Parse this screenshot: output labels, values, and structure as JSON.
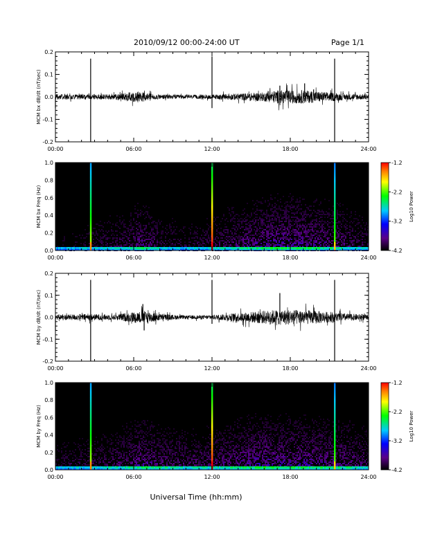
{
  "header": {
    "title": "2010/09/12  00:00-24:00 UT",
    "page": "Page 1/1"
  },
  "footer": {
    "xlabel": "Universal Time (hh:mm)"
  },
  "colors": {
    "trace": "#000000",
    "spectrogram_background": "#000000",
    "colorbar": [
      "#000000",
      "#5a0088",
      "#0000ff",
      "#00c8ff",
      "#00ff00",
      "#ffff00",
      "#ff8000",
      "#ff0000"
    ]
  },
  "chart_data": [
    {
      "type": "line",
      "ylabel": "MCM bx dB/dt (nT/sec)",
      "x_ticks": [
        "00:00",
        "06:00",
        "12:00",
        "18:00",
        "24:00"
      ],
      "xlim": [
        0,
        24
      ],
      "ylim": [
        -0.2,
        0.2
      ],
      "y_ticks": [
        "0.2",
        "0.1",
        "0.0",
        "-0.1",
        "-0.2"
      ],
      "baseline": 0.0,
      "noise_envelope": [
        [
          0,
          0.012
        ],
        [
          3,
          0.012
        ],
        [
          4.5,
          0.012
        ],
        [
          5.5,
          0.02
        ],
        [
          6.5,
          0.025
        ],
        [
          7.5,
          0.012
        ],
        [
          10,
          0.008
        ],
        [
          12,
          0.01
        ],
        [
          14,
          0.015
        ],
        [
          16,
          0.02
        ],
        [
          17,
          0.03
        ],
        [
          18,
          0.03
        ],
        [
          19,
          0.03
        ],
        [
          20,
          0.025
        ],
        [
          22,
          0.015
        ],
        [
          24,
          0.012
        ]
      ],
      "spikes": [
        {
          "x": 0.0,
          "y": -0.05
        },
        {
          "x": 2.7,
          "y": 0.17
        },
        {
          "x": 2.7,
          "y": -0.2
        },
        {
          "x": 12.0,
          "y": 0.18
        },
        {
          "x": 12.0,
          "y": -0.05
        },
        {
          "x": 17.2,
          "y": 0.05
        },
        {
          "x": 19.1,
          "y": 0.06
        },
        {
          "x": 21.4,
          "y": 0.17
        },
        {
          "x": 21.4,
          "y": -0.2
        }
      ]
    },
    {
      "type": "heatmap",
      "ylabel": "MCM bx Freq (Hz)",
      "x_ticks": [
        "00:00",
        "06:00",
        "12:00",
        "18:00",
        "24:00"
      ],
      "xlim": [
        0,
        24
      ],
      "ylim": [
        0.0,
        1.0
      ],
      "y_ticks": [
        "1.0",
        "0.8",
        "0.6",
        "0.4",
        "0.2",
        "0.0"
      ],
      "colorbar_label": "Log10 Power",
      "colorbar_ticks": [
        "-1.2",
        "-2.2",
        "-3.2",
        "-4.2"
      ],
      "color_range": [
        -4.2,
        -1.2
      ],
      "activity": [
        [
          0,
          0.1
        ],
        [
          5.5,
          0.3
        ],
        [
          6.5,
          0.5
        ],
        [
          8,
          0.25
        ],
        [
          10,
          0.2
        ],
        [
          12,
          0.25
        ],
        [
          14,
          0.4
        ],
        [
          17,
          0.6
        ],
        [
          19,
          0.55
        ],
        [
          21,
          0.45
        ],
        [
          24,
          0.25
        ]
      ],
      "vertical_lines": [
        {
          "x": 2.7,
          "intensity": 0.75
        },
        {
          "x": 12.0,
          "intensity": 1.0
        },
        {
          "x": 21.4,
          "intensity": 0.7
        }
      ]
    },
    {
      "type": "line",
      "ylabel": "MCM by dB/dt (nT/sec)",
      "x_ticks": [
        "00:00",
        "06:00",
        "12:00",
        "18:00",
        "24:00"
      ],
      "xlim": [
        0,
        24
      ],
      "ylim": [
        -0.2,
        0.2
      ],
      "y_ticks": [
        "0.2",
        "0.1",
        "0.0",
        "-0.1",
        "-0.2"
      ],
      "baseline": 0.0,
      "noise_envelope": [
        [
          0,
          0.012
        ],
        [
          2.5,
          0.015
        ],
        [
          4.5,
          0.012
        ],
        [
          6,
          0.025
        ],
        [
          7,
          0.03
        ],
        [
          8,
          0.015
        ],
        [
          10,
          0.008
        ],
        [
          12,
          0.01
        ],
        [
          14,
          0.02
        ],
        [
          16,
          0.03
        ],
        [
          17,
          0.035
        ],
        [
          18,
          0.035
        ],
        [
          20,
          0.03
        ],
        [
          22,
          0.018
        ],
        [
          24,
          0.012
        ]
      ],
      "spikes": [
        {
          "x": 0.0,
          "y": -0.06
        },
        {
          "x": 2.7,
          "y": 0.17
        },
        {
          "x": 2.7,
          "y": -0.2
        },
        {
          "x": 6.7,
          "y": 0.06
        },
        {
          "x": 6.8,
          "y": -0.06
        },
        {
          "x": 12.0,
          "y": 0.17
        },
        {
          "x": 12.0,
          "y": -0.03
        },
        {
          "x": 17.2,
          "y": 0.11
        },
        {
          "x": 21.4,
          "y": 0.17
        },
        {
          "x": 21.4,
          "y": -0.2
        }
      ]
    },
    {
      "type": "heatmap",
      "ylabel": "MCM by Freq (Hz)",
      "x_ticks": [
        "00:00",
        "06:00",
        "12:00",
        "18:00",
        "24:00"
      ],
      "xlim": [
        0,
        24
      ],
      "ylim": [
        0.0,
        1.0
      ],
      "y_ticks": [
        "1.0",
        "0.8",
        "0.6",
        "0.4",
        "0.2",
        "0.0"
      ],
      "colorbar_label": "Log10 Power",
      "colorbar_ticks": [
        "-1.2",
        "-2.2",
        "-3.2",
        "-4.2"
      ],
      "color_range": [
        -4.2,
        -1.2
      ],
      "activity": [
        [
          0,
          0.2
        ],
        [
          3,
          0.25
        ],
        [
          5,
          0.35
        ],
        [
          6.5,
          0.5
        ],
        [
          8,
          0.4
        ],
        [
          10,
          0.35
        ],
        [
          12,
          0.35
        ],
        [
          14,
          0.5
        ],
        [
          16,
          0.6
        ],
        [
          17,
          0.55
        ],
        [
          19,
          0.55
        ],
        [
          21,
          0.5
        ],
        [
          24,
          0.35
        ]
      ],
      "vertical_lines": [
        {
          "x": 2.7,
          "intensity": 0.75
        },
        {
          "x": 12.0,
          "intensity": 1.0
        },
        {
          "x": 21.4,
          "intensity": 0.7
        }
      ]
    }
  ]
}
